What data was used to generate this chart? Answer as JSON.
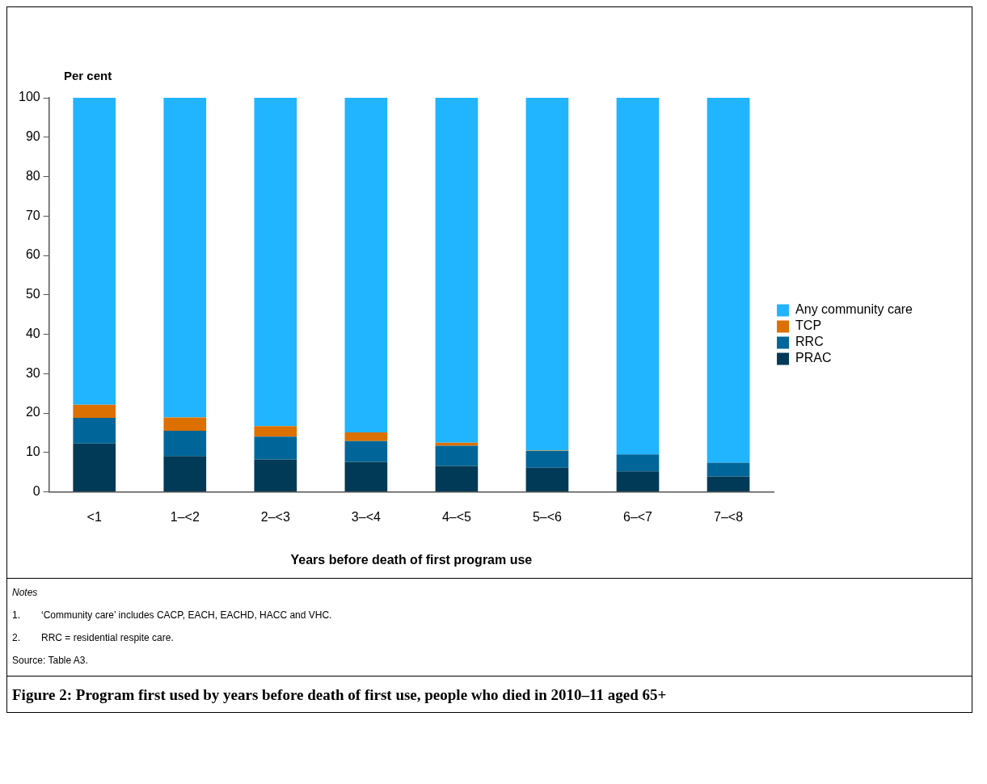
{
  "chart_data": {
    "type": "bar",
    "title": "Figure 2: Program first used by years before death of first use, people who died in 2010–11 aged 65+",
    "xlabel": "Years before death of first program use",
    "ylabel": "Per cent",
    "categories": [
      "<1",
      "1–<2",
      "2–<3",
      "3–<4",
      "4–<5",
      "5–<6",
      "6–<7",
      "7–<8"
    ],
    "stacked": true,
    "series": [
      {
        "name": "PRAC",
        "color": "#003a56",
        "values": [
          12.3,
          9.1,
          8.2,
          7.6,
          6.6,
          6.1,
          5.2,
          3.9
        ]
      },
      {
        "name": "RRC",
        "color": "#006699",
        "values": [
          6.5,
          6.4,
          5.8,
          5.3,
          5.1,
          4.3,
          4.3,
          3.5
        ]
      },
      {
        "name": "TCP",
        "color": "#dc7000",
        "values": [
          3.3,
          3.4,
          2.7,
          2.2,
          0.8,
          0.1,
          0,
          0
        ]
      },
      {
        "name": "Any community care",
        "color": "#21b4ff",
        "values": [
          77.9,
          81.1,
          83.3,
          84.9,
          87.5,
          89.5,
          90.5,
          92.6
        ]
      }
    ],
    "ylim": [
      0,
      100
    ],
    "yticks": [
      0,
      10,
      20,
      30,
      40,
      50,
      60,
      70,
      80,
      90,
      100
    ],
    "grid": false,
    "legend": "right",
    "annotations": [
      "Notes",
      "1.\t‘Community care’ includes CACP, EACH, EACHD, HACC and VHC.",
      "2.\tRRC = residential respite care.",
      "Source: Table A3."
    ]
  }
}
